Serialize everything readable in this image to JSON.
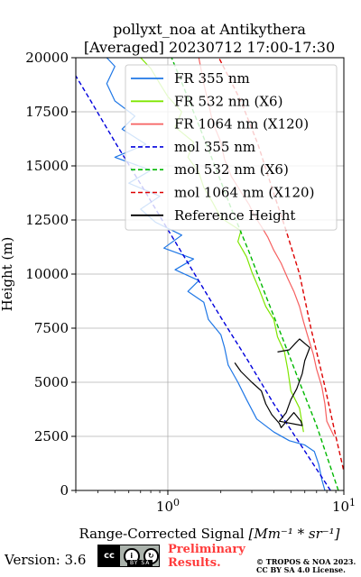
{
  "chart_data": {
    "type": "line",
    "title_line1": "pollyxt_noa at Antikythera",
    "title_line2": "[Averaged] 20230712 17:00-17:30",
    "ylabel": "Height (m)",
    "xlabel_text": "Range-Corrected Signal ",
    "xlabel_math": "[Mm⁻¹ * sr⁻¹]",
    "xscale": "log",
    "xlim": [
      0.3,
      10
    ],
    "ylim": [
      0,
      20000
    ],
    "yticks": [
      {
        "v": 0,
        "label": "0"
      },
      {
        "v": 2500,
        "label": "2500"
      },
      {
        "v": 5000,
        "label": "5000"
      },
      {
        "v": 7500,
        "label": "7500"
      },
      {
        "v": 10000,
        "label": "10000"
      },
      {
        "v": 12500,
        "label": "12500"
      },
      {
        "v": 15000,
        "label": "15000"
      },
      {
        "v": 17500,
        "label": "17500"
      },
      {
        "v": 20000,
        "label": "20000"
      }
    ],
    "xticks": [
      {
        "v": 1,
        "base": "10",
        "exp": "0"
      },
      {
        "v": 10,
        "base": "10",
        "exp": "1"
      }
    ],
    "grid": true,
    "legend_position": "top-right",
    "series": [
      {
        "name": "FR 355 nm",
        "color": "#1f77e6",
        "style": "solid",
        "points": [
          [
            7.8,
            0
          ],
          [
            7.5,
            500
          ],
          [
            7.2,
            1200
          ],
          [
            6.8,
            1800
          ],
          [
            6.0,
            2100
          ],
          [
            4.9,
            2300
          ],
          [
            4.0,
            2700
          ],
          [
            3.2,
            3300
          ],
          [
            2.8,
            4200
          ],
          [
            2.5,
            5000
          ],
          [
            2.2,
            5800
          ],
          [
            2.1,
            6600
          ],
          [
            2.0,
            7200
          ],
          [
            1.7,
            7900
          ],
          [
            1.6,
            8700
          ],
          [
            1.3,
            9200
          ],
          [
            1.5,
            9700
          ],
          [
            1.1,
            10200
          ],
          [
            1.4,
            10700
          ],
          [
            0.95,
            11200
          ],
          [
            1.2,
            11800
          ],
          [
            0.85,
            12400
          ],
          [
            0.7,
            13000
          ],
          [
            0.9,
            13600
          ],
          [
            0.6,
            14200
          ],
          [
            0.8,
            14800
          ],
          [
            0.5,
            15400
          ],
          [
            0.75,
            16000
          ],
          [
            0.55,
            16700
          ],
          [
            0.65,
            17300
          ],
          [
            0.5,
            18000
          ],
          [
            0.45,
            18800
          ],
          [
            0.5,
            19600
          ],
          [
            0.45,
            20000
          ]
        ]
      },
      {
        "name": "FR 532 nm (X6)",
        "color": "#7ee600",
        "style": "solid",
        "points": [
          [
            5.9,
            2700
          ],
          [
            5.6,
            3800
          ],
          [
            5.0,
            4600
          ],
          [
            4.8,
            5600
          ],
          [
            4.6,
            6400
          ],
          [
            4.2,
            7100
          ],
          [
            4.0,
            7900
          ],
          [
            3.6,
            8500
          ],
          [
            3.3,
            9300
          ],
          [
            3.0,
            10100
          ],
          [
            2.8,
            10800
          ],
          [
            2.5,
            11500
          ],
          [
            2.6,
            12000
          ],
          [
            2.0,
            12600
          ],
          [
            1.8,
            13300
          ],
          [
            1.6,
            14000
          ],
          [
            1.5,
            14700
          ],
          [
            1.3,
            15400
          ],
          [
            1.4,
            16100
          ],
          [
            1.1,
            16800
          ],
          [
            1.2,
            17500
          ],
          [
            1.0,
            18200
          ],
          [
            0.9,
            18800
          ],
          [
            0.8,
            19500
          ],
          [
            0.7,
            20000
          ]
        ]
      },
      {
        "name": "FR 1064 nm (X120)",
        "color": "#f66060",
        "style": "solid",
        "points": [
          [
            8.8,
            2500
          ],
          [
            8.0,
            3200
          ],
          [
            7.8,
            4000
          ],
          [
            7.5,
            4800
          ],
          [
            7.0,
            5600
          ],
          [
            6.7,
            6300
          ],
          [
            6.2,
            7200
          ],
          [
            5.9,
            7800
          ],
          [
            5.6,
            8500
          ],
          [
            5.2,
            9200
          ],
          [
            4.8,
            9800
          ],
          [
            4.4,
            10500
          ],
          [
            4.0,
            11100
          ],
          [
            3.7,
            11700
          ],
          [
            3.4,
            12200
          ],
          [
            3.1,
            12700
          ],
          [
            2.9,
            13200
          ],
          [
            2.6,
            13800
          ],
          [
            2.3,
            14500
          ],
          [
            2.1,
            15300
          ],
          [
            2.0,
            16100
          ],
          [
            1.8,
            17000
          ],
          [
            1.7,
            17900
          ],
          [
            1.6,
            18800
          ],
          [
            1.5,
            20000
          ]
        ]
      },
      {
        "name": "mol 355 nm",
        "color": "#0000dd",
        "style": "dashed",
        "points": [
          [
            8.4,
            0
          ],
          [
            5.8,
            2000
          ],
          [
            4.0,
            4000
          ],
          [
            2.85,
            6000
          ],
          [
            2.0,
            8000
          ],
          [
            1.42,
            10000
          ],
          [
            1.01,
            12000
          ],
          [
            0.72,
            14000
          ],
          [
            0.51,
            16000
          ],
          [
            0.365,
            18000
          ],
          [
            0.26,
            20000
          ]
        ]
      },
      {
        "name": "mol 532 nm (X6)",
        "color": "#00b800",
        "style": "dashed",
        "points": [
          [
            9.3,
            0
          ],
          [
            7.0,
            3000
          ],
          [
            5.6,
            5000
          ],
          [
            4.5,
            7000
          ],
          [
            3.6,
            9000
          ],
          [
            2.9,
            11000
          ],
          [
            2.3,
            13000
          ],
          [
            1.85,
            15000
          ],
          [
            1.48,
            17000
          ],
          [
            1.18,
            19000
          ],
          [
            1.05,
            20000
          ]
        ]
      },
      {
        "name": "mol 1064 nm (X120)",
        "color": "#dd0000",
        "style": "dashed",
        "points": [
          [
            10.6,
            0
          ],
          [
            9.0,
            2500
          ],
          [
            7.7,
            5000
          ],
          [
            6.5,
            7500
          ],
          [
            5.6,
            10000
          ],
          [
            4.7,
            12000
          ],
          [
            3.9,
            14000
          ],
          [
            3.25,
            16000
          ],
          [
            2.6,
            18000
          ],
          [
            1.95,
            20000
          ]
        ]
      },
      {
        "name": "Reference Height",
        "color": "#000000",
        "style": "solid",
        "points": [
          [
            2.4,
            5900
          ],
          [
            2.6,
            5500
          ],
          [
            3.0,
            5000
          ],
          [
            3.4,
            4600
          ],
          [
            3.6,
            4000
          ],
          [
            3.9,
            3500
          ],
          [
            4.3,
            3100
          ],
          [
            4.4,
            2900
          ],
          [
            5.2,
            3600
          ],
          [
            5.7,
            3200
          ],
          [
            5.8,
            3000
          ],
          [
            4.3,
            3200
          ],
          [
            4.7,
            3600
          ],
          [
            5.0,
            4200
          ],
          [
            5.4,
            4700
          ],
          [
            5.8,
            5400
          ],
          [
            6.0,
            6000
          ],
          [
            6.4,
            6600
          ],
          [
            5.6,
            7000
          ],
          [
            5.3,
            6800
          ],
          [
            4.9,
            6500
          ],
          [
            4.2,
            6400
          ]
        ]
      }
    ]
  },
  "footer": {
    "version": "Version: 3.6",
    "cc_badge": "cc",
    "cc_by_sa": "BY  SA",
    "cc_icons": [
      "attribution-icon",
      "share-alike-icon"
    ],
    "preliminary": "Preliminary",
    "results": "Results.",
    "copyright_line1": "© TROPOS & NOA 2023.",
    "copyright_line2": "CC BY SA 4.0 License."
  }
}
